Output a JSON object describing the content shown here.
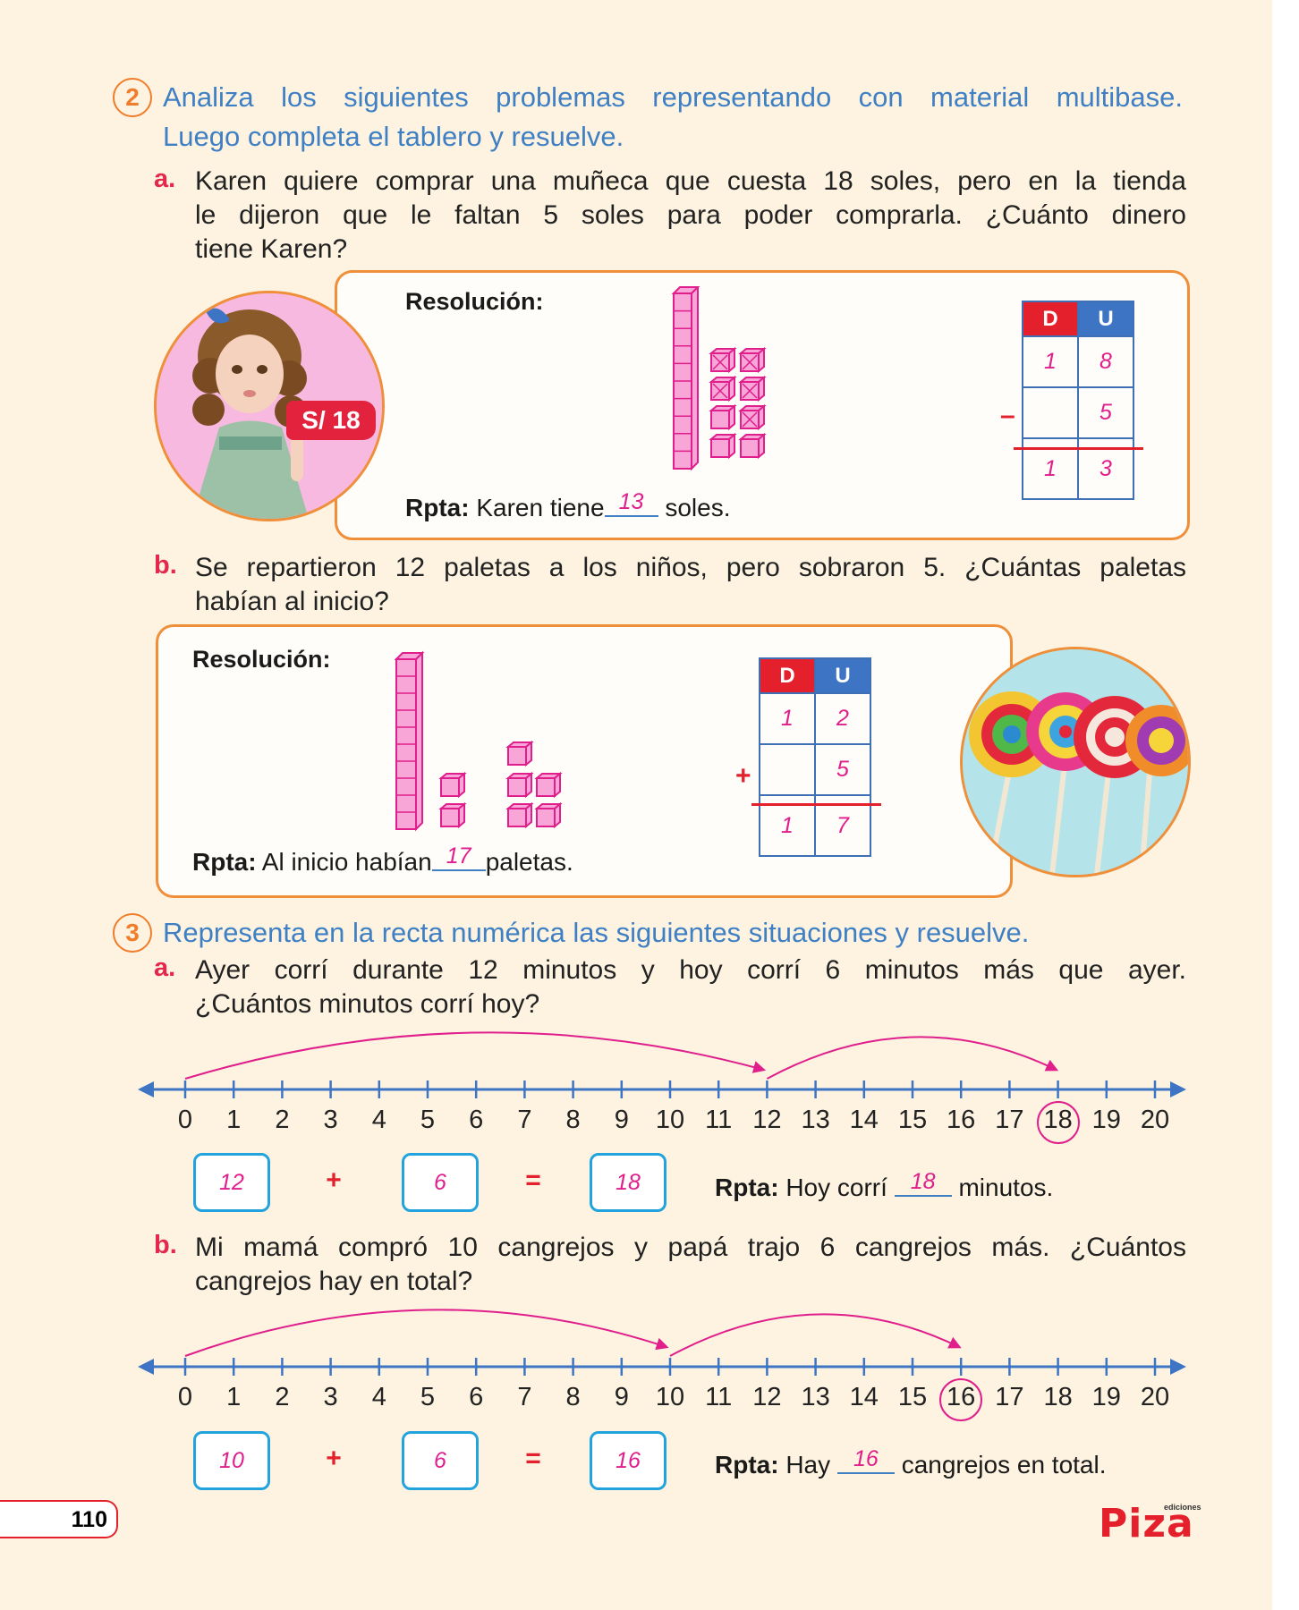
{
  "q2": {
    "number": "2",
    "instruction_line1": "Analiza los siguientes problemas representando con material multibase.",
    "instruction_line2": "Luego completa el tablero y resuelve.",
    "a": {
      "letter": "a.",
      "line1": "Karen quiere comprar una muñeca que cuesta 18 soles, pero en la tienda",
      "line2": "le dijeron que le faltan 5 soles para poder comprarla. ¿Cuánto dinero",
      "line3": "tiene Karen?",
      "price_tag": "S/ 18",
      "resolution_label": "Resolución:",
      "table": {
        "header_d": "D",
        "header_u": "U",
        "row1_d": "1",
        "row1_u": "8",
        "row2_d": "",
        "row2_u": "5",
        "result_d": "1",
        "result_u": "3",
        "operator": "–"
      },
      "answer_label": "Rpta:",
      "answer_before": "Karen tiene",
      "answer_value": "13",
      "answer_after": "soles."
    },
    "b": {
      "letter": "b.",
      "line1": "Se repartieron 12 paletas a los niños, pero sobraron 5. ¿Cuántas paletas",
      "line2": "habían al inicio?",
      "resolution_label": "Resolución:",
      "table": {
        "header_d": "D",
        "header_u": "U",
        "row1_d": "1",
        "row1_u": "2",
        "row2_d": "",
        "row2_u": "5",
        "result_d": "1",
        "result_u": "7",
        "operator": "+"
      },
      "answer_label": "Rpta:",
      "answer_before": "Al inicio habían",
      "answer_value": "17",
      "answer_after": "paletas."
    }
  },
  "q3": {
    "number": "3",
    "instruction": "Representa en la recta numérica las siguientes situaciones y resuelve.",
    "a": {
      "letter": "a.",
      "line1": "Ayer corrí durante 12 minutos y hoy corrí 6 minutos más que ayer.",
      "line2": "¿Cuántos minutos corrí hoy?",
      "circled": 18,
      "jump_from": 12,
      "eq_a": "12",
      "eq_plus": "+",
      "eq_b": "6",
      "eq_equals": "=",
      "eq_result": "18",
      "answer_label": "Rpta:",
      "answer_before": "Hoy corrí",
      "answer_value": "18",
      "answer_after": "minutos."
    },
    "b": {
      "letter": "b.",
      "line1": "Mi mamá compró 10 cangrejos y papá trajo 6 cangrejos más. ¿Cuántos",
      "line2": "cangrejos hay en total?",
      "circled": 16,
      "jump_from": 10,
      "eq_a": "10",
      "eq_plus": "+",
      "eq_b": "6",
      "eq_equals": "=",
      "eq_result": "16",
      "answer_label": "Rpta:",
      "answer_before": "Hay",
      "answer_value": "16",
      "answer_after": "cangrejos en total."
    },
    "number_line_labels": [
      "0",
      "1",
      "2",
      "3",
      "4",
      "5",
      "6",
      "7",
      "8",
      "9",
      "10",
      "11",
      "12",
      "13",
      "14",
      "15",
      "16",
      "17",
      "18",
      "19",
      "20"
    ]
  },
  "footer": {
    "page_number": "110",
    "logo_small": "ediciones",
    "logo": "Piza"
  },
  "colors": {
    "blue": "#3f7fc4",
    "red": "#e4284c",
    "magenta": "#e01e8c",
    "orange": "#ef8f3a",
    "cyan": "#23a3dd"
  }
}
